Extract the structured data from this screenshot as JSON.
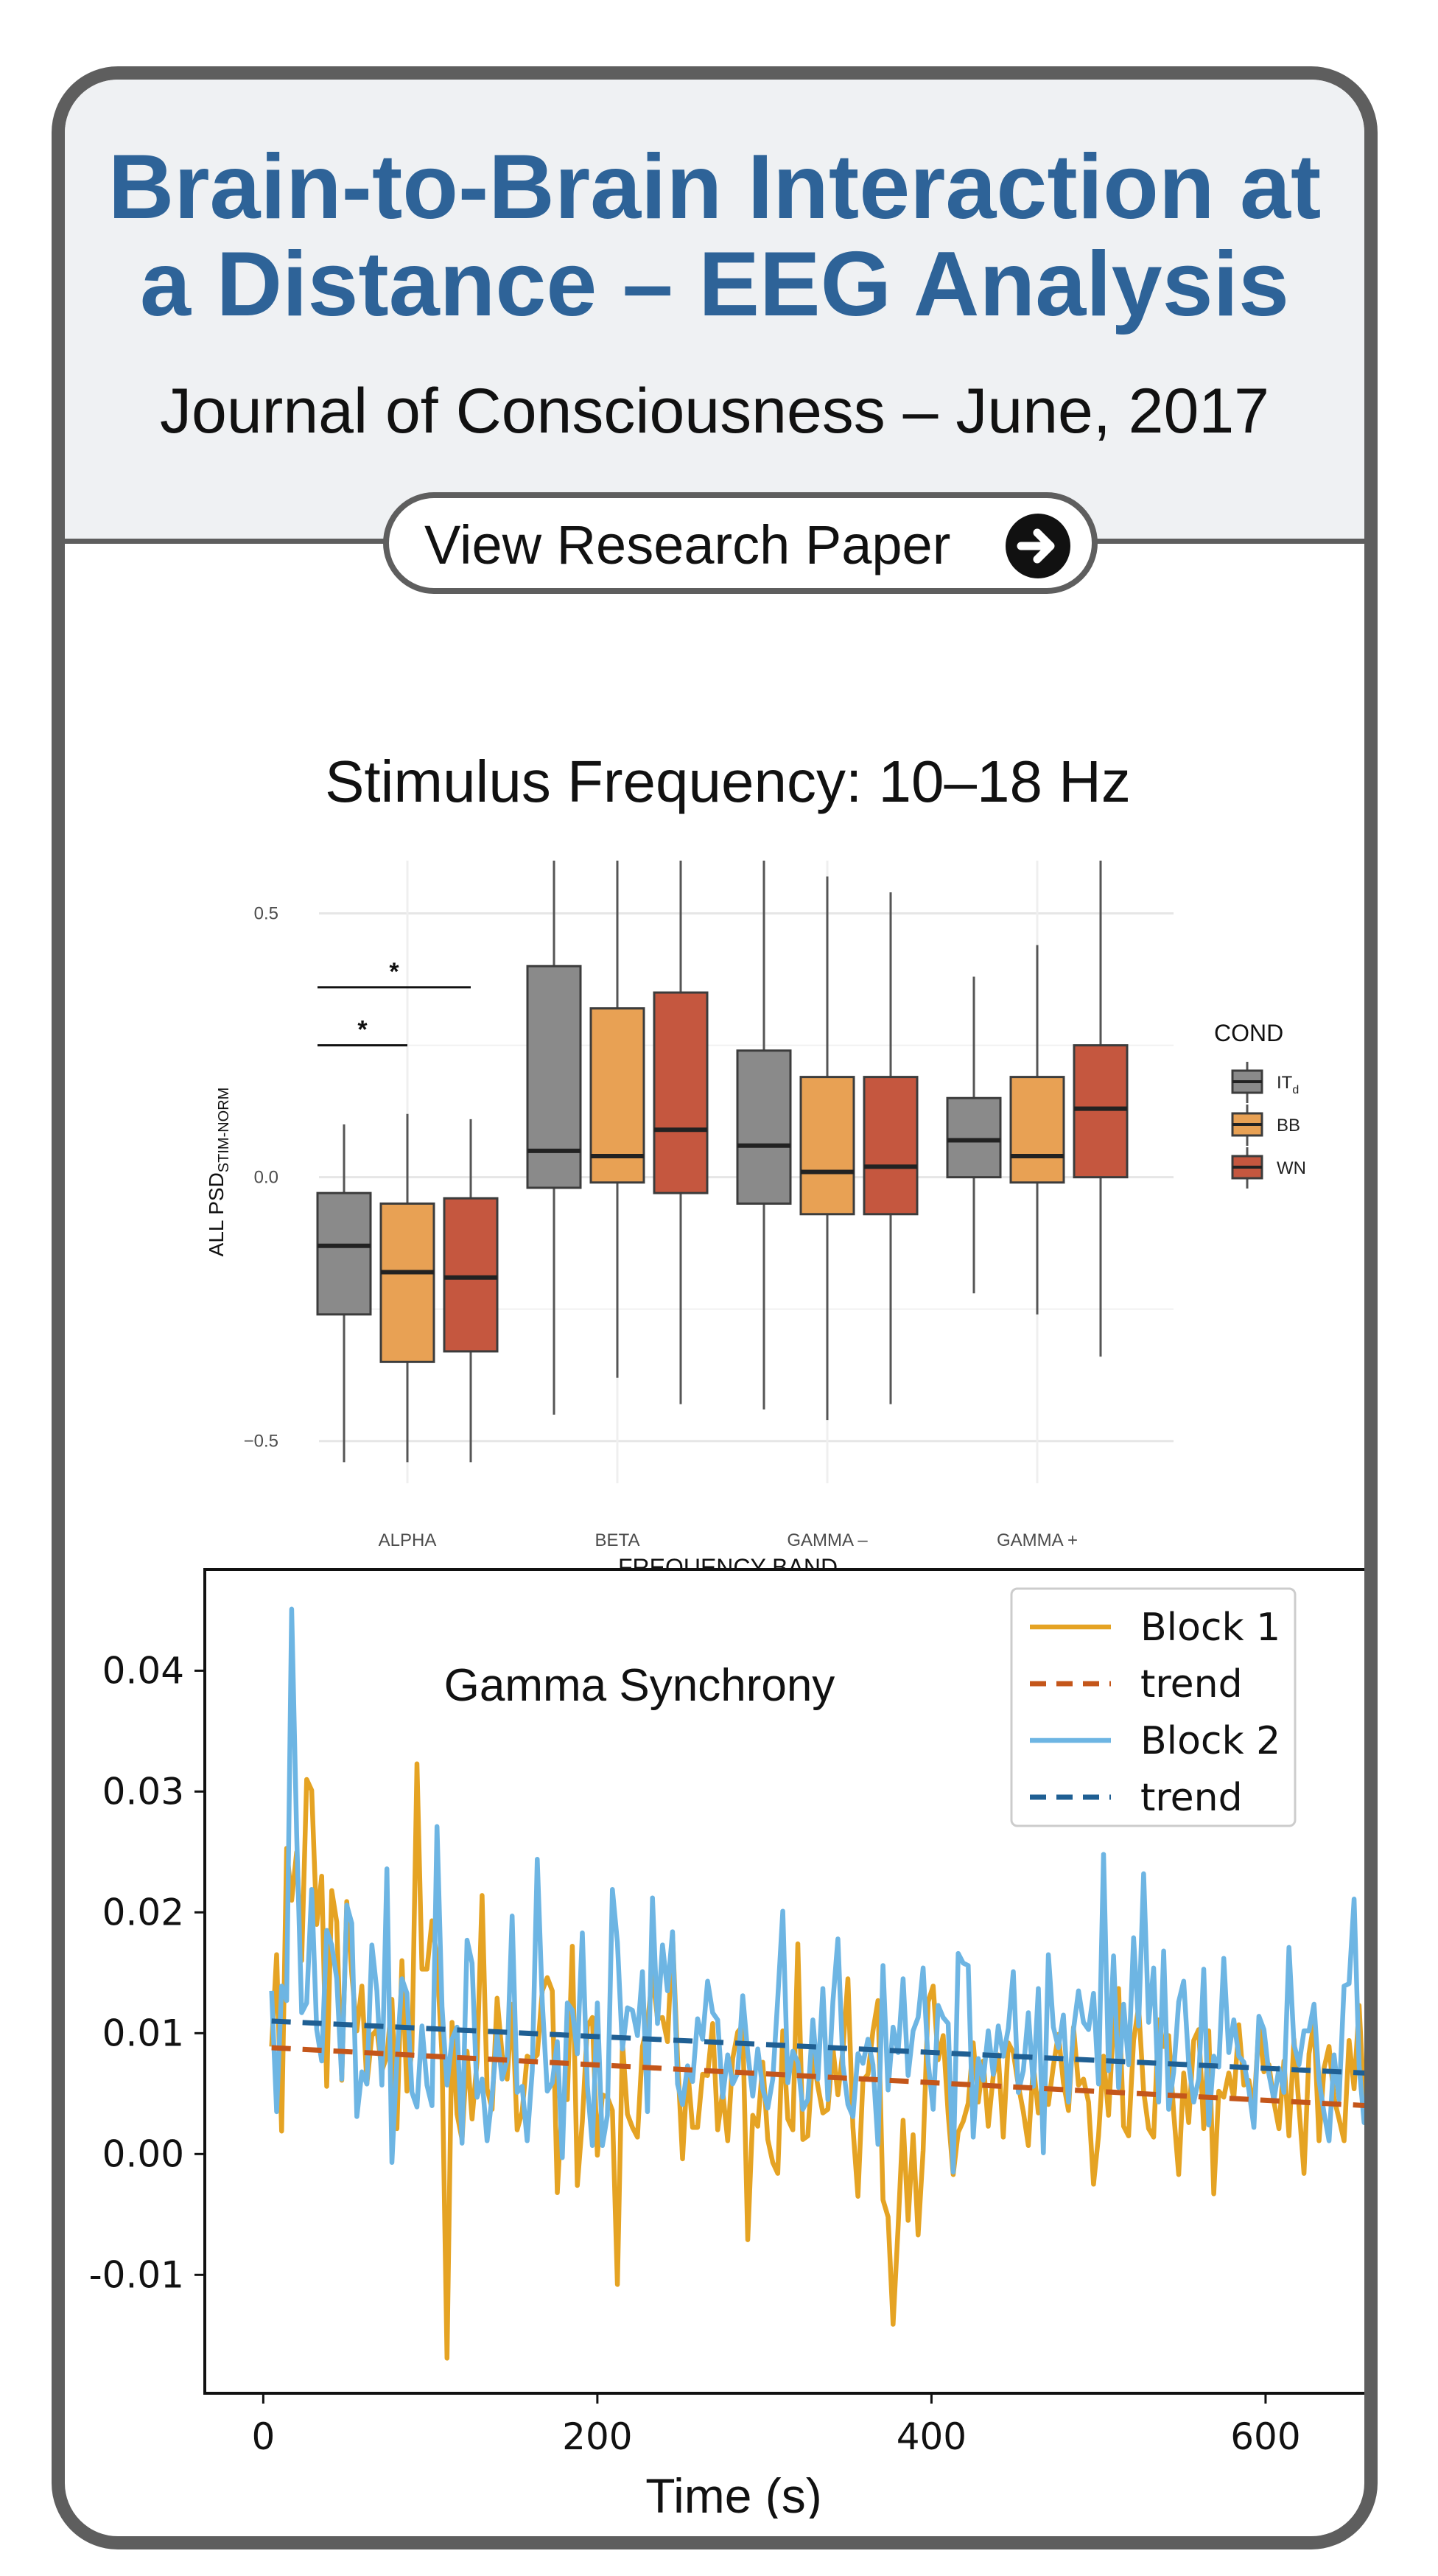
{
  "header": {
    "title_line1": "Brain-to-Brain Interaction at",
    "title_line2": "a Distance – EEG Analysis",
    "journal": "Journal of Consciousness – June, 2017",
    "button_label": "View Research Paper",
    "button_icon": "arrow-right-circle-icon"
  },
  "colors": {
    "title": "#2e6398",
    "border": "#5e5e5e",
    "header_bg": "#eff1f3",
    "ITd": "#8a8a8a",
    "BB": "#e8a154",
    "WN": "#c5573f",
    "block1": "#e5a323",
    "block1_trend": "#c4561a",
    "block2": "#6db5e3",
    "block2_trend": "#1f5f93"
  },
  "chart_data": [
    {
      "type": "box",
      "title": "Stimulus Frequency: 10–18 Hz",
      "xlabel": "FREQUENCY BAND",
      "ylabel_main": "ALL PSD",
      "ylabel_sub": "STIM-NORM",
      "yticks": [
        "0.5",
        "0.0",
        "−0.5"
      ],
      "ylim": [
        -0.58,
        0.6
      ],
      "categories": [
        "ALPHA",
        "BETA",
        "GAMMA –",
        "GAMMA +"
      ],
      "legend": {
        "title": "COND",
        "items": [
          {
            "label": "IT",
            "sub": "d"
          },
          {
            "label": "BB",
            "sub": ""
          },
          {
            "label": "WN",
            "sub": ""
          }
        ],
        "placement": "right"
      },
      "series": [
        {
          "name": "ITd",
          "boxes": [
            {
              "min": -0.54,
              "q1": -0.26,
              "median": -0.13,
              "q3": -0.03,
              "max": 0.1
            },
            {
              "min": -0.45,
              "q1": -0.02,
              "median": 0.05,
              "q3": 0.4,
              "max": 0.6
            },
            {
              "min": -0.44,
              "q1": -0.05,
              "median": 0.06,
              "q3": 0.24,
              "max": 0.6
            },
            {
              "min": -0.22,
              "q1": 0.0,
              "median": 0.07,
              "q3": 0.15,
              "max": 0.38
            }
          ]
        },
        {
          "name": "BB",
          "boxes": [
            {
              "min": -0.54,
              "q1": -0.35,
              "median": -0.18,
              "q3": -0.05,
              "max": 0.12
            },
            {
              "min": -0.38,
              "q1": -0.01,
              "median": 0.04,
              "q3": 0.32,
              "max": 0.6
            },
            {
              "min": -0.46,
              "q1": -0.07,
              "median": 0.01,
              "q3": 0.19,
              "max": 0.57
            },
            {
              "min": -0.26,
              "q1": -0.01,
              "median": 0.04,
              "q3": 0.19,
              "max": 0.44
            }
          ]
        },
        {
          "name": "WN",
          "boxes": [
            {
              "min": -0.54,
              "q1": -0.33,
              "median": -0.19,
              "q3": -0.04,
              "max": 0.11
            },
            {
              "min": -0.43,
              "q1": -0.03,
              "median": 0.09,
              "q3": 0.35,
              "max": 0.6
            },
            {
              "min": -0.43,
              "q1": -0.07,
              "median": 0.02,
              "q3": 0.19,
              "max": 0.54
            },
            {
              "min": -0.34,
              "q1": 0.0,
              "median": 0.13,
              "q3": 0.25,
              "max": 0.6
            }
          ]
        }
      ],
      "annotations": [
        {
          "text": "*",
          "from": "ALPHA-ITd",
          "to": "ALPHA-BB",
          "y": 0.25
        },
        {
          "text": "*",
          "from": "ALPHA-ITd",
          "to": "ALPHA-WN",
          "y": 0.36
        }
      ]
    },
    {
      "type": "line",
      "title": "Gamma Synchrony",
      "xlabel": "Time (s)",
      "ylabel": "",
      "xlim": [
        -35,
        675
      ],
      "ylim": [
        -0.0198,
        0.0485
      ],
      "xticks": [
        "0",
        "200",
        "400",
        "600"
      ],
      "yticks": [
        "0.04",
        "0.03",
        "0.02",
        "0.01",
        "0.00",
        "-0.01"
      ],
      "legend_placement": "top-right",
      "series": [
        {
          "name": "Block 1",
          "style": "solid",
          "x_start": 5,
          "x_step": 3,
          "values": [
            0.0089,
            0.0165,
            0.0019,
            0.0253,
            0.021,
            0.025,
            0.016,
            0.031,
            0.0301,
            0.019,
            0.023,
            0.0056,
            0.0218,
            0.0192,
            0.0061,
            0.0209,
            0.0149,
            0.0102,
            0.0139,
            0.0058,
            0.0098,
            0.0103,
            0.0069,
            0.0081,
            0.0128,
            0.0021,
            0.016,
            0.0052,
            0.0086,
            0.0323,
            0.0153,
            0.0153,
            0.0193,
            0.0161,
            0.0081,
            -0.0169,
            0.0109,
            0.0033,
            0.0012,
            0.0085,
            0.0029,
            0.0077,
            0.0214,
            0.0054,
            0.0037,
            0.0129,
            0.0082,
            0.0062,
            0.0124,
            0.002,
            0.0035,
            0.0081,
            0.0078,
            0.0082,
            0.0135,
            0.0146,
            0.0135,
            -0.0032,
            0.0046,
            0.0045,
            0.0172,
            -0.0026,
            0.0027,
            0.0106,
            0.0113,
            -0.0001,
            0.0049,
            0.0047,
            0.0036,
            -0.0108,
            0.0093,
            0.0033,
            0.0022,
            0.0014,
            0.0089,
            0.0107,
            0.0149,
            0.0112,
            0.0113,
            0.0093,
            0.0182,
            0.008,
            -0.0004,
            0.0072,
            0.0022,
            0.0022,
            0.0066,
            0.0065,
            0.0108,
            0.002,
            0.0052,
            0.0011,
            0.0079,
            0.0101,
            0.0106,
            -0.0071,
            0.0032,
            0.0023,
            0.0076,
            0.0012,
            -0.0007,
            -0.0016,
            0.0102,
            0.0029,
            0.002,
            0.0174,
            0.0012,
            0.0015,
            0.0082,
            0.0056,
            0.0034,
            0.0037,
            0.0088,
            0.0049,
            0.0086,
            0.0145,
            0.0022,
            -0.0035,
            0.0061,
            0.0066,
            0.0102,
            0.0127,
            -0.0038,
            -0.0052,
            -0.0141,
            -0.0061,
            0.0028,
            -0.0055,
            0.0016,
            -0.0067,
            0.0003,
            0.0126,
            0.0139,
            0.0078,
            0.0098,
            0.0033,
            -0.0017,
            0.0018,
            0.0027,
            0.0042,
            0.0092,
            0.0043,
            0.0077,
            0.0023,
            0.0065,
            0.0082,
            0.0014,
            0.0092,
            0.0084,
            0.0057,
            0.0035,
            0.0007,
            0.0074,
            0.0034,
            0.0067,
            0.0041,
            0.0073,
            0.0099,
            0.0059,
            0.0036,
            0.0105,
            0.0057,
            0.0062,
            0.0043,
            -0.0025,
            0.0015,
            0.0081,
            0.0032,
            0.011,
            0.0137,
            0.0023,
            0.0015,
            0.0094,
            0.0122,
            0.0052,
            0.0021,
            0.0014,
            0.0111,
            0.0089,
            0.0098,
            0.0034,
            -0.0017,
            0.0067,
            0.0026,
            0.0094,
            0.0103,
            0.0021,
            0.0102,
            -0.0033,
            0.0052,
            0.0047,
            0.0067,
            0.0046,
            0.0107,
            0.0057,
            0.0061,
            0.0037,
            0.0107,
            0.0068,
            0.0074,
            0.0043,
            0.0021,
            0.0077,
            0.0015,
            0.0095,
            0.0039,
            -0.0016,
            0.0083,
            0.0109,
            0.0011,
            0.0071,
            0.0089,
            0.0046,
            0.0029,
            0.0011,
            0.0094,
            0.0054,
            0.0123,
            0.0042,
            0.0028,
            0.0021,
            -0.0035,
            0.0096,
            0.0038
          ]
        },
        {
          "name": "trend",
          "style": "dashed",
          "x": [
            5,
            675
          ],
          "values": [
            0.0088,
            0.0039
          ]
        },
        {
          "name": "Block 2",
          "style": "solid",
          "x_start": 5,
          "x_step": 3,
          "values": [
            0.0135,
            0.0035,
            0.0139,
            0.0127,
            0.0451,
            0.0265,
            0.0117,
            0.0125,
            0.0219,
            0.0103,
            0.0077,
            0.0185,
            0.0173,
            0.0145,
            0.0062,
            0.0206,
            0.0191,
            0.0031,
            0.0068,
            0.0058,
            0.0173,
            0.0135,
            0.0057,
            0.0236,
            -0.0007,
            0.0079,
            0.0145,
            0.0133,
            0.0051,
            0.0039,
            0.0106,
            0.0057,
            0.004,
            0.0271,
            0.0122,
            0.0057,
            0.0095,
            0.0105,
            0.0009,
            0.0177,
            0.0158,
            0.0047,
            0.0062,
            0.0011,
            0.0048,
            0.0099,
            0.0062,
            0.0078,
            0.0197,
            0.0051,
            0.0056,
            0.0011,
            0.0069,
            0.0244,
            0.0126,
            0.0052,
            0.0059,
            0.0093,
            -0.0003,
            0.0125,
            0.0119,
            0.0083,
            0.0183,
            0.0057,
            0.0007,
            0.0125,
            0.0007,
            0.0032,
            0.0219,
            0.0175,
            0.0087,
            0.0121,
            0.0119,
            0.0098,
            0.0151,
            0.0035,
            0.0212,
            0.0108,
            0.0173,
            0.0135,
            0.0184,
            0.0058,
            0.0041,
            0.0073,
            0.006,
            0.0112,
            0.0095,
            0.0143,
            0.0117,
            0.0111,
            0.0047,
            0.0082,
            0.0058,
            0.0067,
            0.0131,
            0.0084,
            0.0048,
            0.0087,
            0.0054,
            0.0038,
            0.0062,
            0.0129,
            0.0201,
            0.0059,
            0.0085,
            0.0076,
            0.0037,
            0.0045,
            0.0111,
            0.0062,
            0.0137,
            0.0045,
            0.0126,
            0.0178,
            0.0074,
            0.0041,
            0.0031,
            0.0083,
            0.0075,
            0.0095,
            0.0074,
            0.0008,
            0.0156,
            0.0053,
            0.0105,
            0.0084,
            0.0145,
            0.0065,
            0.0102,
            0.0113,
            0.0154,
            0.0076,
            0.0037,
            0.0123,
            0.0113,
            0.0108,
            -0.0015,
            0.0166,
            0.0158,
            0.0156,
            0.0014,
            0.0079,
            0.0061,
            0.0102,
            0.0066,
            0.0106,
            0.0081,
            0.0104,
            0.0151,
            0.0051,
            0.0069,
            0.0117,
            0.0056,
            0.0137,
            0.0001,
            0.0165,
            0.0105,
            0.0088,
            0.0115,
            0.0043,
            0.0103,
            0.0135,
            0.0109,
            0.0103,
            0.0133,
            0.0058,
            0.0248,
            0.0069,
            0.0164,
            0.0055,
            0.0124,
            0.0074,
            0.0179,
            0.0106,
            0.0232,
            0.0109,
            0.0154,
            0.0043,
            0.0168,
            0.0037,
            0.0068,
            0.0126,
            0.0143,
            0.0075,
            0.0043,
            0.0062,
            0.0153,
            0.0024,
            0.0081,
            0.0072,
            0.0162,
            0.0084,
            0.0111,
            0.0081,
            0.0076,
            0.0053,
            0.0022,
            0.0114,
            0.0103,
            0.0066,
            0.0045,
            0.0071,
            0.0051,
            0.0171,
            0.0091,
            0.0074,
            0.0102,
            0.0102,
            0.0124,
            0.0061,
            0.0034,
            0.0011,
            0.0082,
            0.0045,
            0.0139,
            0.0141,
            0.0211,
            0.0073,
            0.0026,
            0.0052,
            0.0048,
            0.0038,
            0.0157,
            0.0049,
            0.0019,
            0.0271,
            0.0087,
            0.0069,
            0.0055,
            0.0179,
            0.0116,
            0.0196,
            0.0023,
            0.0077,
            0.0115
          ]
        },
        {
          "name": "trend",
          "style": "dashed",
          "x": [
            5,
            675
          ],
          "values": [
            0.011,
            0.0066
          ]
        }
      ]
    }
  ]
}
